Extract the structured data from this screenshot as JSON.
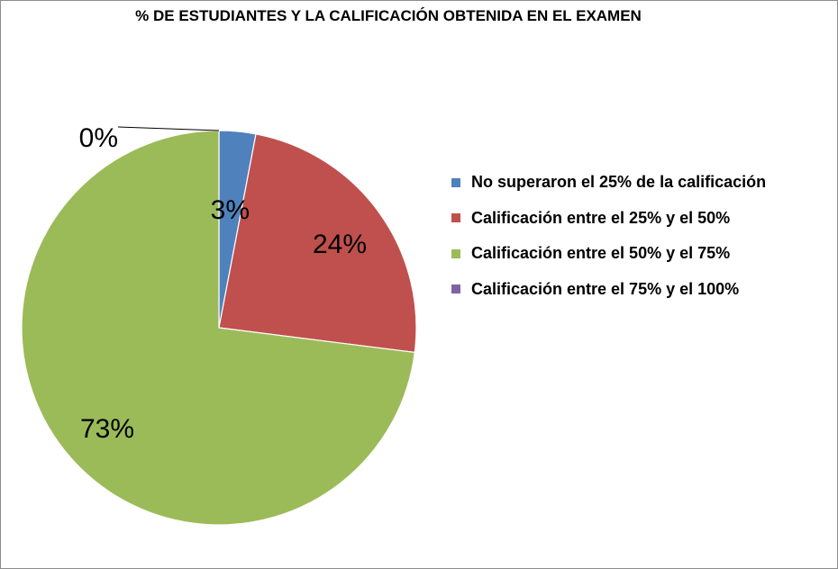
{
  "chart_data": {
    "type": "pie",
    "title": "% DE ESTUDIANTES Y LA CALIFICACIÓN OBTENIDA EN EL EXAMEN",
    "categories": [
      "No superaron el 25% de la calificación",
      "Calificación entre el 25% y el 50%",
      "Calificación entre el 50% y el 75%",
      "Calificación entre el 75% y el 100%"
    ],
    "values": [
      3,
      24,
      73,
      0
    ],
    "data_labels": [
      "3%",
      "24%",
      "73%",
      "0%"
    ],
    "colors": [
      "#4f81bd",
      "#c0504d",
      "#9bbb59",
      "#8064a2"
    ],
    "legend_position": "right",
    "start_angle": "12 o'clock",
    "direction": "clockwise"
  }
}
